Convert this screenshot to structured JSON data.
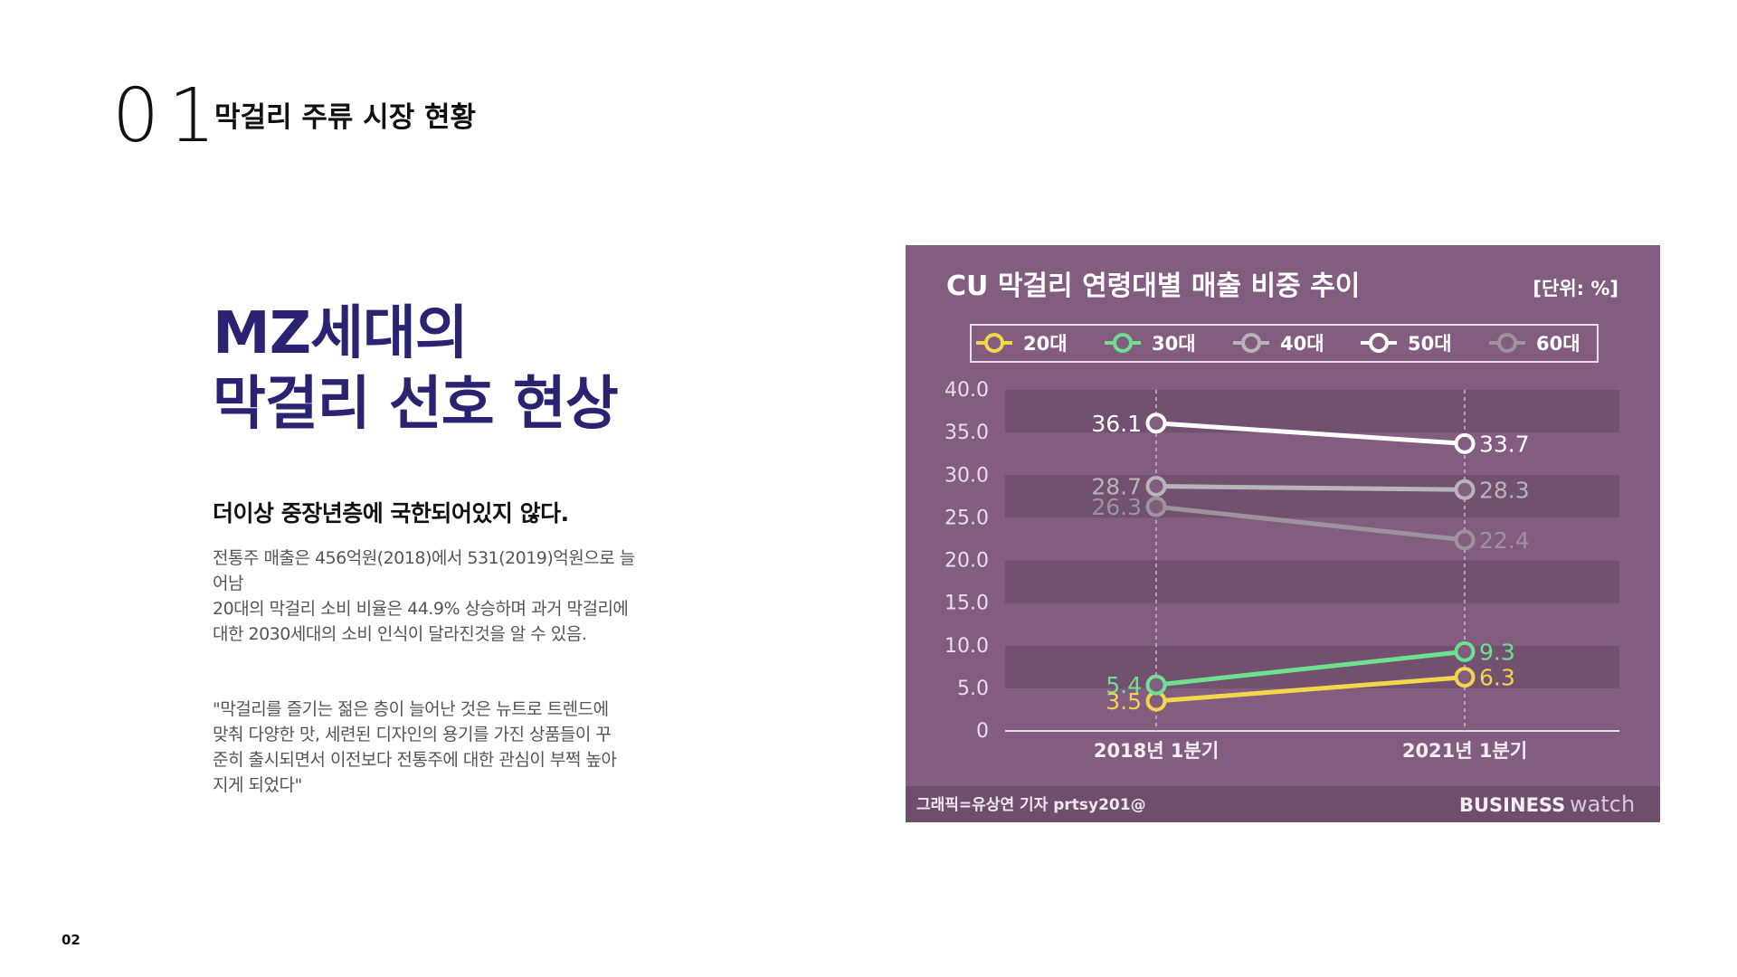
{
  "section": {
    "number": "01",
    "title": "막걸리 주류 시장 현황"
  },
  "headline": {
    "line1": "MZ세대의",
    "line2": "막걸리 선호 현상"
  },
  "subhead": "더이상 중장년층에 국한되어있지 않다.",
  "body": {
    "line1": "전통주 매출은 456억원(2018)에서 531(2019)억원으로 늘",
    "line2": "어남",
    "line3": "20대의 막걸리 소비 비율은 44.9% 상승하며 과거 막걸리에",
    "line4": "대한 2030세대의 소비 인식이 달라진것을 알 수 있음."
  },
  "quote": {
    "line1": " \"막걸리를 즐기는 젊은 층이 늘어난 것은 뉴트로 트렌드에",
    "line2": "맞춰 다양한 맛, 세련된 디자인의 용기를 가진 상품들이 꾸",
    "line3": "준히 출시되면서 이전보다 전통주에 대한 관심이 부쩍 높아",
    "line4": "지게 되었다\""
  },
  "page_number": "02",
  "chart_data": {
    "type": "line",
    "title": "CU 막걸리 연령대별 매출 비중 추이",
    "unit_label": "[단위: %]",
    "categories": [
      "2018년 1분기",
      "2021년 1분기"
    ],
    "ylim": [
      0,
      40
    ],
    "yticks": [
      "0",
      "5.0",
      "10.0",
      "15.0",
      "20.0",
      "25.0",
      "30.0",
      "35.0",
      "40.0"
    ],
    "legend_position": "top",
    "series": [
      {
        "name": "20대",
        "values": [
          3.5,
          6.3
        ],
        "labels": [
          "3.5",
          "6.3"
        ],
        "color": "#f2d64b"
      },
      {
        "name": "30대",
        "values": [
          5.4,
          9.3
        ],
        "labels": [
          "5.4",
          "9.3"
        ],
        "color": "#6ee08e"
      },
      {
        "name": "40대",
        "values": [
          28.7,
          28.3
        ],
        "labels": [
          "28.7",
          "28.3"
        ],
        "color": "#b9b4ba"
      },
      {
        "name": "50대",
        "values": [
          36.1,
          33.7
        ],
        "labels": [
          "36.1",
          "33.7"
        ],
        "color": "#ffffff"
      },
      {
        "name": "60대",
        "values": [
          26.3,
          22.4
        ],
        "labels": [
          "26.3",
          "22.4"
        ],
        "color": "#9e939c"
      }
    ],
    "credit": "그래픽=유상연 기자 prtsy201@",
    "brand_bold": "BUSINESS",
    "brand_light": "watch",
    "colors": {
      "background": "#835d80",
      "band": "#725070",
      "footer": "#6e4e6c",
      "label_text": "#f4eef4",
      "tick_text": "#e8dde8"
    }
  }
}
